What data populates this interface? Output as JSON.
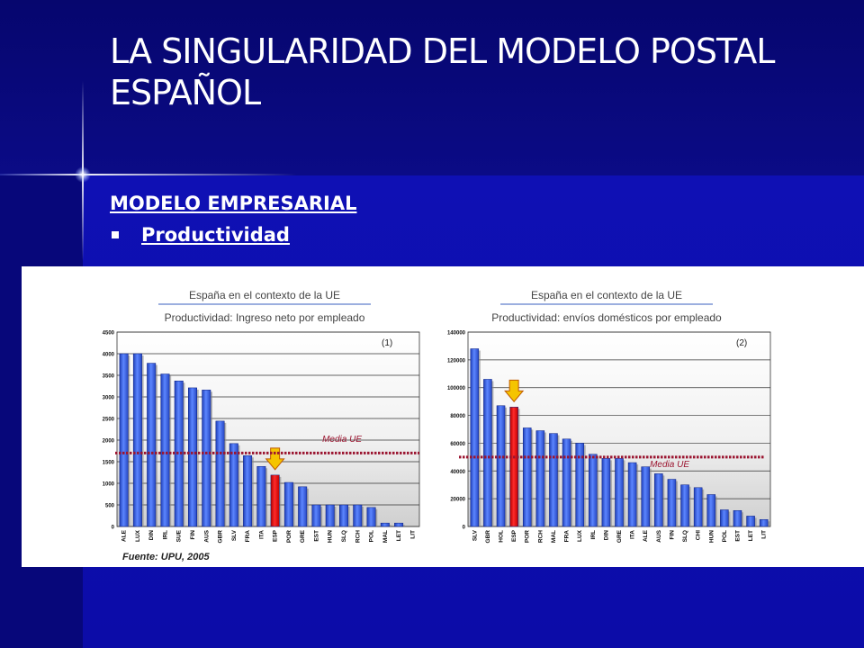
{
  "slide": {
    "title": "LA SINGULARIDAD DEL MODELO POSTAL ESPAÑOL",
    "section": "MODELO EMPRESARIAL",
    "bullet": "Productividad"
  },
  "source": "Fuente: UPU, 2005",
  "colors": {
    "bar": "#3b63e0",
    "highlight": "#e01010",
    "mean_line": "#9b1530",
    "arrow": "#f5c400"
  },
  "chart_data": [
    {
      "type": "bar",
      "title": "España en el contexto de la UE",
      "subtitle": "Productividad: Ingreso neto por empleado",
      "marker": "(1)",
      "categories": [
        "ALE",
        "LUX",
        "DIN",
        "IRL",
        "SUE",
        "FIN",
        "AUS",
        "GBR",
        "SLV",
        "FRA",
        "ITA",
        "ESP",
        "POR",
        "GRE",
        "EST",
        "HUN",
        "SLQ",
        "RCH",
        "POL",
        "MAL",
        "LET",
        "LIT"
      ],
      "values": [
        4000,
        4000,
        3780,
        3530,
        3370,
        3210,
        3160,
        2440,
        1920,
        1640,
        1390,
        1190,
        1020,
        920,
        500,
        500,
        500,
        500,
        440,
        80,
        80,
        0
      ],
      "highlight": "ESP",
      "ylim": [
        0,
        4500
      ],
      "yticks": [
        0,
        500,
        1000,
        1500,
        2000,
        2500,
        3000,
        3500,
        4000,
        4500
      ],
      "mean_label": "Media UE",
      "mean_value": 1700,
      "grid": true
    },
    {
      "type": "bar",
      "title": "España en el contexto de la UE",
      "subtitle": "Productividad: envíos domésticos por empleado",
      "marker": "(2)",
      "categories": [
        "SLV",
        "GBR",
        "HOL",
        "ESP",
        "POR",
        "RCH",
        "MAL",
        "FRA",
        "LUX",
        "IRL",
        "DIN",
        "GRE",
        "ITA",
        "ALE",
        "AUS",
        "FIN",
        "SLQ",
        "CHI",
        "HUN",
        "POL",
        "EST",
        "LET",
        "LIT"
      ],
      "values": [
        128000,
        106000,
        87000,
        86000,
        71000,
        69000,
        67000,
        63000,
        60000,
        52000,
        49000,
        49000,
        46000,
        43000,
        38000,
        34000,
        30000,
        28000,
        23000,
        12000,
        11500,
        7500,
        5000
      ],
      "highlight": "ESP",
      "ylim": [
        0,
        140000
      ],
      "yticks": [
        0,
        20000,
        40000,
        60000,
        80000,
        100000,
        120000,
        140000
      ],
      "mean_label": "Media UE",
      "mean_value": 50000,
      "grid": true
    }
  ]
}
